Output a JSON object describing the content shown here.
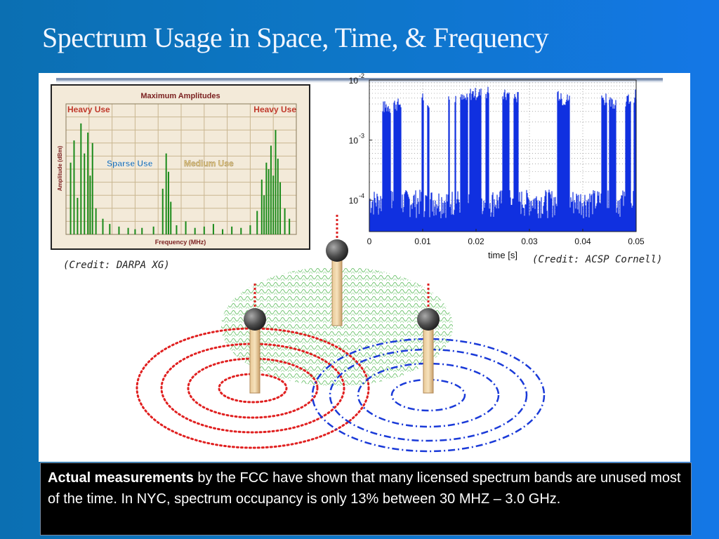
{
  "slide": {
    "title": "Spectrum Usage in Space, Time, & Frequency",
    "caption_bold": "Actual measurements",
    "caption_rest": " by the FCC have shown that many licensed spectrum bands are unused most of the time. In NYC, spectrum occupancy is only 13% between 30 MHZ – 3.0 GHz."
  },
  "credits": {
    "left": "(Credit: DARPA XG)",
    "right": "(Credit: ACSP Cornell)"
  },
  "chart_data": [
    {
      "type": "bar",
      "title": "Maximum Amplitudes",
      "xlabel": "Frequency (MHz)",
      "ylabel": "Amplitude (dBm)",
      "annotations": [
        {
          "text": "Heavy Use",
          "color": "#c0392b",
          "position": "top-left"
        },
        {
          "text": "Heavy Use",
          "color": "#c0392b",
          "position": "top-right"
        },
        {
          "text": "Sparse Use",
          "color": "#1f6fb0",
          "position": "middle-left"
        },
        {
          "text": "Medium Use",
          "color": "#e8cf8a",
          "position": "middle-center"
        }
      ],
      "series": [
        {
          "color": "#1a8a1a",
          "peaks": [
            [
              0.02,
              0.55
            ],
            [
              0.035,
              0.72
            ],
            [
              0.05,
              0.28
            ],
            [
              0.065,
              0.85
            ],
            [
              0.08,
              0.62
            ],
            [
              0.095,
              0.78
            ],
            [
              0.105,
              0.45
            ],
            [
              0.115,
              0.7
            ],
            [
              0.13,
              0.2
            ],
            [
              0.16,
              0.12
            ],
            [
              0.19,
              0.08
            ],
            [
              0.23,
              0.06
            ],
            [
              0.27,
              0.05
            ],
            [
              0.3,
              0.04
            ],
            [
              0.33,
              0.05
            ],
            [
              0.38,
              0.06
            ],
            [
              0.42,
              0.35
            ],
            [
              0.435,
              0.62
            ],
            [
              0.445,
              0.48
            ],
            [
              0.455,
              0.25
            ],
            [
              0.48,
              0.07
            ],
            [
              0.52,
              0.1
            ],
            [
              0.56,
              0.05
            ],
            [
              0.6,
              0.06
            ],
            [
              0.64,
              0.08
            ],
            [
              0.68,
              0.04
            ],
            [
              0.72,
              0.06
            ],
            [
              0.76,
              0.05
            ],
            [
              0.8,
              0.07
            ],
            [
              0.83,
              0.18
            ],
            [
              0.85,
              0.42
            ],
            [
              0.86,
              0.3
            ],
            [
              0.87,
              0.55
            ],
            [
              0.88,
              0.5
            ],
            [
              0.89,
              0.68
            ],
            [
              0.9,
              0.45
            ],
            [
              0.91,
              0.8
            ],
            [
              0.92,
              0.58
            ],
            [
              0.93,
              0.4
            ],
            [
              0.95,
              0.2
            ],
            [
              0.97,
              0.12
            ]
          ]
        }
      ]
    },
    {
      "type": "line",
      "xlabel": "time [s]",
      "ylabel": "",
      "xlim": [
        0,
        0.05
      ],
      "ylim": [
        3e-05,
        0.01
      ],
      "yscale": "log",
      "x_ticks": [
        "0",
        "0.01",
        "0.02",
        "0.03",
        "0.04",
        "0.05"
      ],
      "y_ticks": [
        {
          "base": "10",
          "exp": "-2",
          "value": 0.01
        },
        {
          "base": "10",
          "exp": "-3",
          "value": 0.001
        },
        {
          "base": "10",
          "exp": "-4",
          "value": 0.0001
        }
      ],
      "grid": true,
      "series": [
        {
          "color": "#1030e0",
          "noise_floor": [
            5e-05,
            0.00015
          ],
          "bursts": [
            [
              0.0025,
              0.004,
              0.0045
            ],
            [
              0.0045,
              0.006,
              0.005
            ],
            [
              0.0098,
              0.0102,
              0.0065
            ],
            [
              0.0108,
              0.0112,
              0.0055
            ],
            [
              0.0148,
              0.0151,
              0.0055
            ],
            [
              0.016,
              0.0163,
              0.007
            ],
            [
              0.017,
              0.0185,
              0.006
            ],
            [
              0.0188,
              0.021,
              0.0075
            ],
            [
              0.0218,
              0.0225,
              0.008
            ],
            [
              0.025,
              0.0262,
              0.007
            ],
            [
              0.027,
              0.028,
              0.0065
            ],
            [
              0.0352,
              0.036,
              0.0075
            ],
            [
              0.036,
              0.0375,
              0.006
            ],
            [
              0.0435,
              0.0445,
              0.006
            ],
            [
              0.045,
              0.0462,
              0.0055
            ],
            [
              0.048,
              0.049,
              0.006
            ],
            [
              0.0495,
              0.05,
              0.007
            ]
          ]
        }
      ]
    }
  ]
}
